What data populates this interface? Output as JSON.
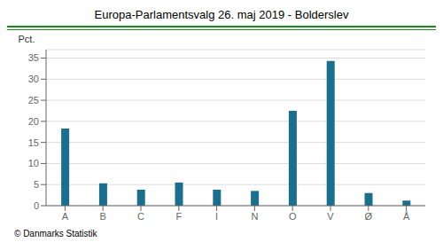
{
  "chart_data": {
    "type": "bar",
    "title": "Europa-Parlamentsvalg 26. maj 2019 - Bolderslev",
    "categories": [
      "A",
      "B",
      "C",
      "F",
      "I",
      "N",
      "O",
      "V",
      "Ø",
      "Å"
    ],
    "values": [
      18.3,
      5.3,
      3.8,
      5.5,
      3.8,
      3.5,
      22.5,
      34.3,
      3.0,
      1.2
    ],
    "color": "#1a6e8e",
    "ylabel": "Pct.",
    "ylim": [
      0,
      37
    ],
    "yticks": [
      0,
      5,
      10,
      15,
      20,
      25,
      30,
      35
    ],
    "grid": true,
    "footer": "© Danmarks Statistik"
  }
}
